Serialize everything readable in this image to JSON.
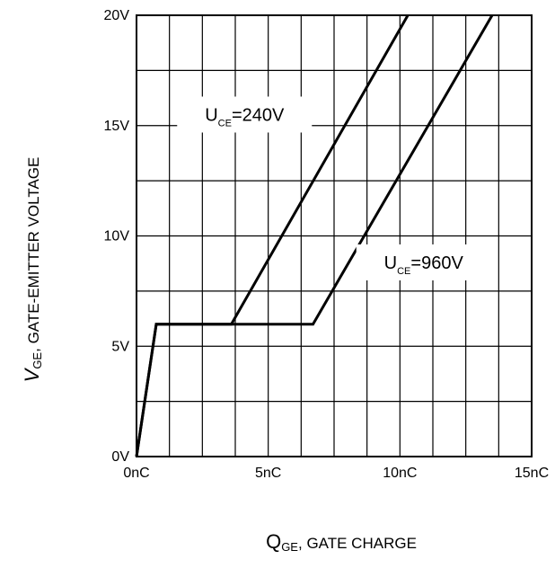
{
  "chart_data": {
    "type": "line",
    "xlabel": {
      "symbol": "Q",
      "subscript": "GE",
      "text": ", GATE CHARGE"
    },
    "ylabel": {
      "symbol": "V",
      "subscript": "GE",
      "text": ", GATE-EMITTER VOLTAGE"
    },
    "xlim": [
      0,
      15
    ],
    "ylim": [
      0,
      20
    ],
    "x_tick_labels": [
      "0nC",
      "5nC",
      "10nC",
      "15nC"
    ],
    "x_tick_values": [
      0,
      5,
      10,
      15
    ],
    "y_tick_labels": [
      "0V",
      "5V",
      "10V",
      "15V",
      "20V"
    ],
    "y_tick_values": [
      0,
      5,
      10,
      15,
      20
    ],
    "grid": true,
    "series": [
      {
        "name": "U_CE=240V",
        "label": {
          "main": "U",
          "sub": "CE",
          "value": "=240V"
        },
        "x": [
          0,
          0.75,
          3.6,
          10.3
        ],
        "y": [
          0,
          6,
          6,
          20
        ]
      },
      {
        "name": "U_CE=960V",
        "label": {
          "main": "U",
          "sub": "CE",
          "value": "=960V"
        },
        "x": [
          0,
          0.75,
          6.7,
          13.5
        ],
        "y": [
          0,
          6,
          6,
          20
        ]
      }
    ]
  }
}
